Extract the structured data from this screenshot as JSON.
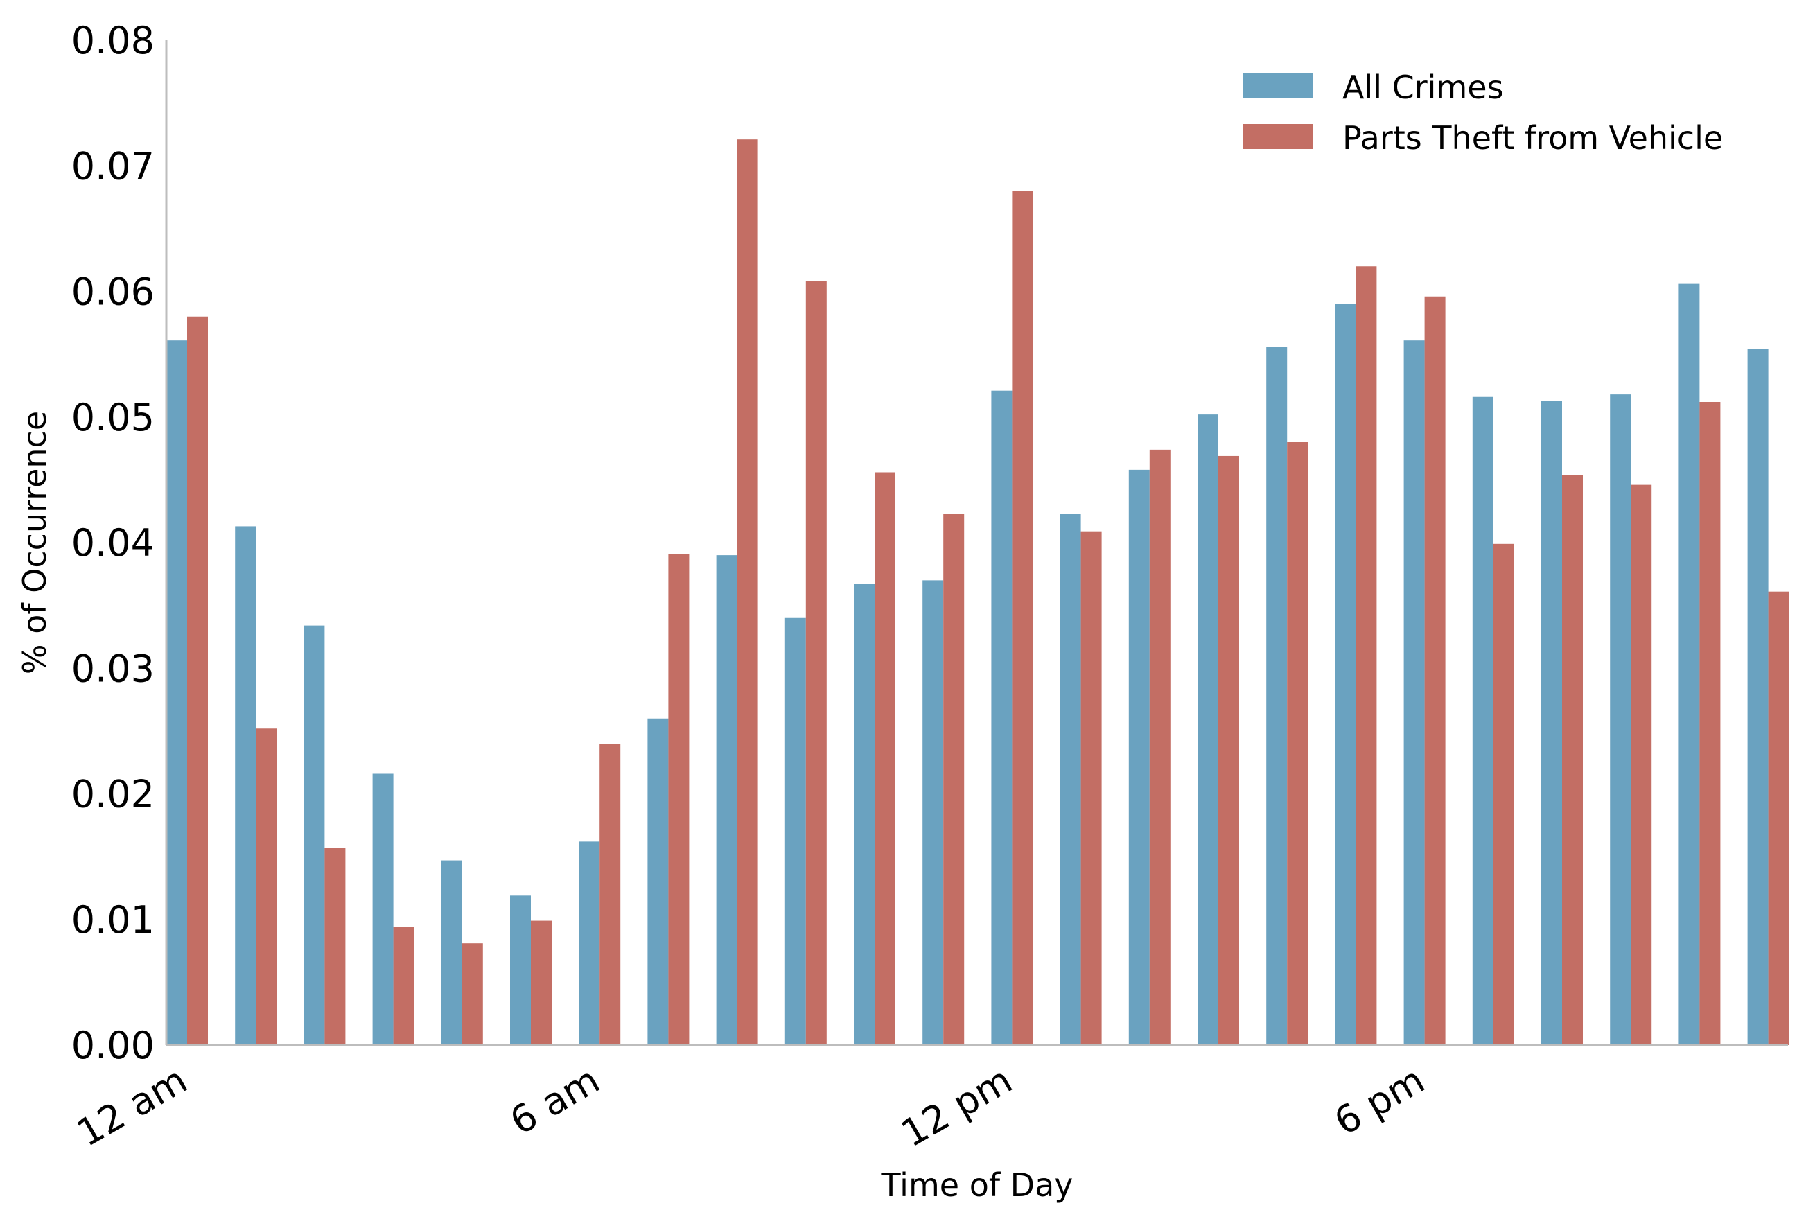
{
  "chart_data": {
    "type": "bar",
    "xlabel": "Time of Day",
    "ylabel": "% of Occurrence",
    "ylim": [
      0,
      0.08
    ],
    "yticks": [
      "0.00",
      "0.01",
      "0.02",
      "0.03",
      "0.04",
      "0.05",
      "0.06",
      "0.07",
      "0.08"
    ],
    "xticks": [
      {
        "label": "12 am",
        "hour": 0
      },
      {
        "label": "6 am",
        "hour": 6
      },
      {
        "label": "12 pm",
        "hour": 12
      },
      {
        "label": "6 pm",
        "hour": 18
      }
    ],
    "hours": [
      0,
      1,
      2,
      3,
      4,
      5,
      6,
      7,
      8,
      9,
      10,
      11,
      12,
      13,
      14,
      15,
      16,
      17,
      18,
      19,
      20,
      21,
      22,
      23
    ],
    "grid": false,
    "legend_position": "top-right",
    "series": [
      {
        "name": "All Crimes",
        "color": "#6aa2c0",
        "values": [
          0.0561,
          0.0413,
          0.0334,
          0.0216,
          0.0147,
          0.0119,
          0.0162,
          0.026,
          0.039,
          0.034,
          0.0367,
          0.037,
          0.0521,
          0.0423,
          0.0458,
          0.0502,
          0.0556,
          0.059,
          0.0561,
          0.0516,
          0.0513,
          0.0518,
          0.0606,
          0.0554
        ]
      },
      {
        "name": "Parts Theft from Vehicle",
        "color": "#c36e64",
        "values": [
          0.058,
          0.0252,
          0.0157,
          0.0094,
          0.0081,
          0.0099,
          0.024,
          0.0391,
          0.0721,
          0.0608,
          0.0456,
          0.0423,
          0.068,
          0.0409,
          0.0474,
          0.0469,
          0.048,
          0.062,
          0.0596,
          0.0399,
          0.0454,
          0.0446,
          0.0512,
          0.0361
        ]
      }
    ]
  }
}
